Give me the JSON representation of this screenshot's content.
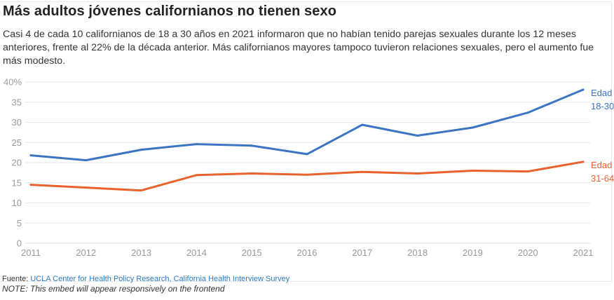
{
  "header": {
    "title": "Más adultos jóvenes californianos no tienen sexo",
    "subtitle": "Casi 4 de cada 10 californianos de 18 a 30 años en 2021 informaron que no habían tenido parejas sexuales durante los 12 meses anteriores, frente al 22% de la década anterior. Más californianos mayores tampoco tuvieron relaciones sexuales, pero el aumento fue más modesto."
  },
  "footer": {
    "source_label": "Fuente: ",
    "source_link": "UCLA Center for Health Policy Research, California Health Interview Survey",
    "note": "NOTE: This embed will appear responsively on the frontend"
  },
  "chart_data": {
    "type": "line",
    "title": "Más adultos jóvenes californianos no tienen sexo",
    "xlabel": "",
    "ylabel": "",
    "x": [
      2011,
      2012,
      2013,
      2014,
      2015,
      2016,
      2017,
      2018,
      2019,
      2020,
      2021
    ],
    "x_tick_labels": [
      "2011",
      "2012",
      "2013",
      "2014",
      "2015",
      "2016",
      "2017",
      "2018",
      "2019",
      "2020",
      "2021"
    ],
    "ylim": [
      0,
      40
    ],
    "y_ticks": [
      0,
      5,
      10,
      15,
      20,
      25,
      30,
      35,
      40
    ],
    "y_tick_labels": [
      "0",
      "5",
      "10",
      "15",
      "20",
      "25",
      "30",
      "35",
      "40%"
    ],
    "grid": true,
    "legend": "inline-right",
    "series": [
      {
        "name": "Edad 18-30",
        "label_lines": [
          "Edad",
          "18-30"
        ],
        "color": "#3b74c2",
        "values": [
          21.8,
          20.6,
          23.2,
          24.6,
          24.2,
          22.1,
          29.4,
          26.7,
          28.7,
          32.4,
          38.1
        ]
      },
      {
        "name": "Edad 31-64",
        "label_lines": [
          "Edad",
          "31-64"
        ],
        "color": "#e8622e",
        "values": [
          14.5,
          13.8,
          13.1,
          16.9,
          17.3,
          17.0,
          17.7,
          17.3,
          18.0,
          17.8,
          20.2
        ]
      }
    ]
  }
}
